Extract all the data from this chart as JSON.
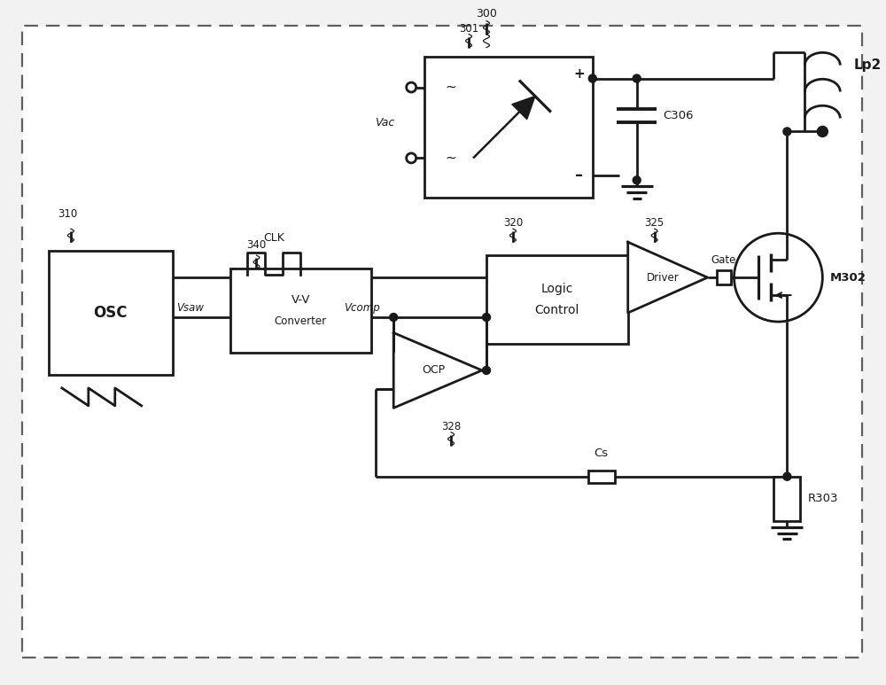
{
  "bg": "#f2f2f2",
  "lc": "#1a1a1a",
  "lw": 2.0,
  "fig_w": 10.0,
  "fig_h": 7.73,
  "dpi": 100,
  "xlim": [
    0,
    100
  ],
  "ylim": [
    0,
    77.3
  ]
}
